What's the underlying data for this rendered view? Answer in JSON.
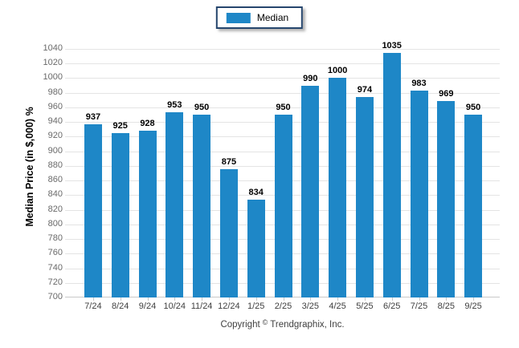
{
  "legend": {
    "label": "Median",
    "swatch_icon": "blue-square-swatch"
  },
  "colors": {
    "bar": "#1e87c7",
    "legend_border": "#26466d",
    "gridline": "#e4e4e4",
    "axis_line": "#c9c9c9",
    "value_label": "#000000",
    "tick_label": "#6a6a6a"
  },
  "footer": {
    "prefix": "Copyright",
    "symbol": "©",
    "suffix": "Trendgraphix, Inc."
  },
  "chart_data": {
    "type": "bar",
    "title": "",
    "categories": [
      "7/24",
      "8/24",
      "9/24",
      "10/24",
      "11/24",
      "12/24",
      "1/25",
      "2/25",
      "3/25",
      "4/25",
      "5/25",
      "6/25",
      "7/25",
      "8/25",
      "9/25"
    ],
    "values": [
      937,
      925,
      928,
      953,
      950,
      875,
      834,
      950,
      990,
      1000,
      974,
      1035,
      983,
      969,
      950
    ],
    "series": [
      {
        "name": "Median",
        "values": [
          937,
          925,
          928,
          953,
          950,
          875,
          834,
          950,
          990,
          1000,
          974,
          1035,
          983,
          969,
          950
        ]
      }
    ],
    "xlabel": "",
    "ylabel": "Median Price (in $,000) %",
    "ylim": [
      700,
      1040
    ],
    "ytick_step": 20,
    "grid": true,
    "value_labels": true,
    "legend_position": "top-center",
    "bar_color": "#1e87c7"
  }
}
